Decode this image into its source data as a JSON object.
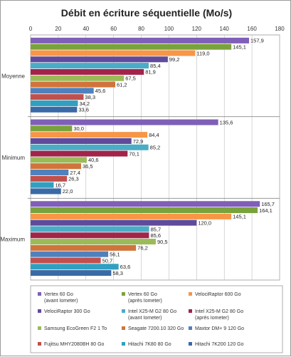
{
  "chart_data": {
    "type": "bar",
    "orientation": "horizontal",
    "title": "Débit en écriture séquentielle (Mo/s)",
    "xlabel": "",
    "ylabel": "",
    "xlim": [
      0,
      180
    ],
    "x_ticks": [
      "0",
      "20",
      "40",
      "60",
      "80",
      "100",
      "120",
      "140",
      "160",
      "180"
    ],
    "grid": true,
    "legend_position": "bottom",
    "categories": [
      "Moyenne",
      "Minimum",
      "Maximum"
    ],
    "series": [
      {
        "name": "Vertex 60 Go (avant Iometer)",
        "color": "#7f5fb8",
        "values": [
          157.9,
          135.6,
          165.7
        ]
      },
      {
        "name": "Vertex 60 Go (après Iometer)",
        "color": "#7aa23c",
        "values": [
          145.1,
          30.0,
          164.1
        ]
      },
      {
        "name": "VelociRaptor 600 Go",
        "color": "#f79646",
        "values": [
          119.0,
          84.4,
          145.1
        ]
      },
      {
        "name": "VelociRaptor 300 Go",
        "color": "#604a9b",
        "values": [
          99.2,
          72.9,
          120.0
        ]
      },
      {
        "name": "Intel X25-M G2 80 Go (avant Iometer)",
        "color": "#4bacc6",
        "values": [
          85.4,
          85.2,
          85.7
        ]
      },
      {
        "name": "Intel X25-M G2 80 Go (après Iometer)",
        "color": "#a3234a",
        "values": [
          81.9,
          70.1,
          85.6
        ]
      },
      {
        "name": "Samsung EcoGreen F2 1 To",
        "color": "#9bbb59",
        "values": [
          67.5,
          40.6,
          90.5
        ]
      },
      {
        "name": "Seagate 7200.10 320 Go",
        "color": "#d0743c",
        "values": [
          61.2,
          36.5,
          76.2
        ]
      },
      {
        "name": "Maxtor DM+ 9 120 Go",
        "color": "#4f81bd",
        "values": [
          45.6,
          27.4,
          56.1
        ]
      },
      {
        "name": "Fujitsu MHY2080BH 80 Go",
        "color": "#c0504d",
        "values": [
          38.3,
          26.3,
          50.7
        ]
      },
      {
        "name": "Hitachi 7K80 80 Go",
        "color": "#31a0c0",
        "values": [
          34.2,
          16.7,
          63.6
        ]
      },
      {
        "name": "Hitachi 7K200 120 Go",
        "color": "#3a6aa6",
        "values": [
          33.6,
          22.0,
          58.3
        ]
      }
    ],
    "value_labels": [
      [
        "157,9",
        "135,6",
        "165,7"
      ],
      [
        "145,1",
        "30,0",
        "164,1"
      ],
      [
        "119,0",
        "84,4",
        "145,1"
      ],
      [
        "99,2",
        "72,9",
        "120,0"
      ],
      [
        "85,4",
        "85,2",
        "85,7"
      ],
      [
        "81,9",
        "70,1",
        "85,6"
      ],
      [
        "67,5",
        "40,6",
        "90,5"
      ],
      [
        "61,2",
        "36,5",
        "76,2"
      ],
      [
        "45,6",
        "27,4",
        "56,1"
      ],
      [
        "38,3",
        "26,3",
        "50,7"
      ],
      [
        "34,2",
        "16,7",
        "63,6"
      ],
      [
        "33,6",
        "22,0",
        "58,3"
      ]
    ],
    "legend_lines": [
      [
        "Vertex 60 Go",
        "(avant Iometer)"
      ],
      [
        "Vertex 60 Go",
        "(après Iometer)"
      ],
      [
        "VelociRaptor 600 Go"
      ],
      [
        "VelociRaptor 300 Go"
      ],
      [
        "Intel X25-M G2 80 Go",
        "(avant Iometer)"
      ],
      [
        "Intel X25-M G2 80 Go",
        "(après Iometer)"
      ],
      [
        "Samsung EcoGreen F2 1 To"
      ],
      [
        "Seagate 7200.10 320 Go"
      ],
      [
        "Maxtor DM+ 9 120 Go"
      ],
      [
        "Fujitsu MHY2080BH 80 Go"
      ],
      [
        "Hitachi 7K80 80 Go"
      ],
      [
        "Hitachi 7K200 120 Go"
      ]
    ]
  }
}
